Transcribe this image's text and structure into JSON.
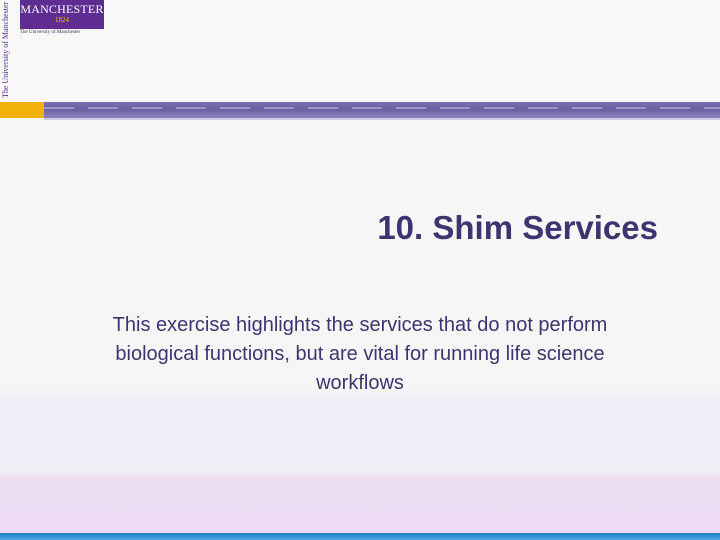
{
  "logo": {
    "wordmark": "MANCHESTER",
    "year": "1824",
    "subtitle": "The University of Manchester",
    "vertical_text": "The University of Manchester"
  },
  "slide": {
    "title": "10. Shim Services",
    "subtitle": "This exercise highlights the services that do not perform biological functions, but are vital for running life science workflows"
  },
  "colors": {
    "title": "#3d3470",
    "header_bar": "#6a5ea4",
    "gold_accent": "#f2b10a",
    "logo_purple": "#5f2d91",
    "bottom_stripe": "#1f7fc4"
  }
}
